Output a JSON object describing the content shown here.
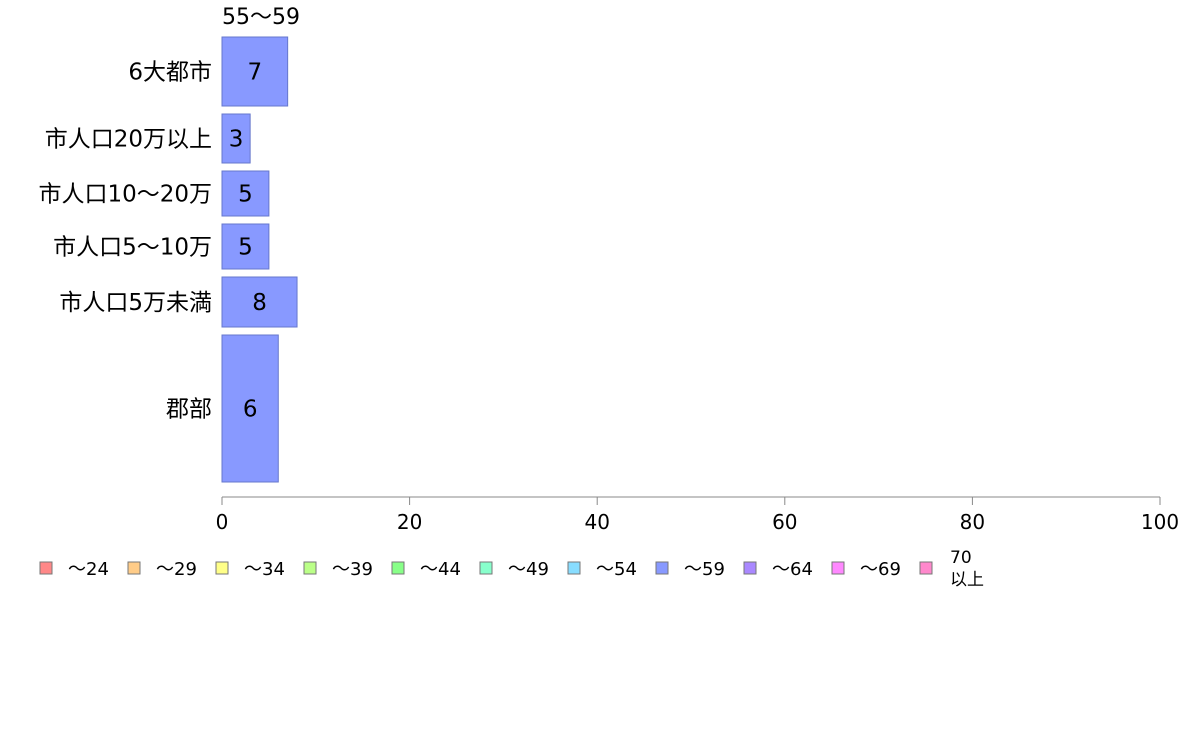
{
  "chart_data": {
    "type": "bar",
    "orientation": "horizontal",
    "segment_label": "55〜59",
    "categories": [
      "6大都市",
      "市人口20万以上",
      "市人口10〜20万",
      "市人口5〜10万",
      "市人口5万未満",
      "郡部"
    ],
    "series": [
      {
        "name": "〜59",
        "values": [
          7,
          3,
          5,
          5,
          8,
          6
        ]
      }
    ],
    "xlim": [
      0,
      100
    ],
    "x_ticks": [
      0,
      20,
      40,
      60,
      80,
      100
    ],
    "grid": false,
    "legend_position": "bottom-left",
    "legend": [
      {
        "label": "〜24",
        "color": "#ff8888"
      },
      {
        "label": "〜29",
        "color": "#ffcc88"
      },
      {
        "label": "〜34",
        "color": "#ffff88"
      },
      {
        "label": "〜39",
        "color": "#bbff88"
      },
      {
        "label": "〜44",
        "color": "#88ff88"
      },
      {
        "label": "〜49",
        "color": "#88ffcc"
      },
      {
        "label": "〜54",
        "color": "#88ddff"
      },
      {
        "label": "〜59",
        "color": "#8899ff"
      },
      {
        "label": "〜64",
        "color": "#aa88ff"
      },
      {
        "label": "〜69",
        "color": "#ff88ff"
      },
      {
        "label": "70\n以上",
        "color": "#ff88cc"
      }
    ],
    "bar_color": "#8899ff"
  }
}
